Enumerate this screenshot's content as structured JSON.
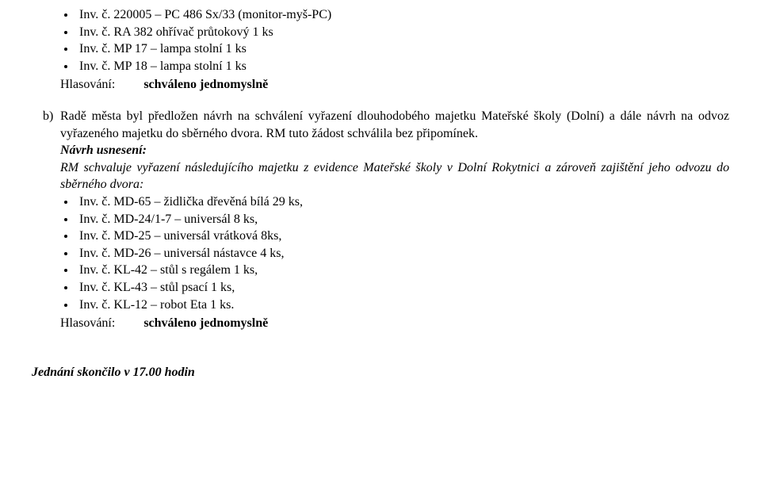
{
  "list1": [
    "Inv. č. 220005 – PC 486 Sx/33 (monitor-myš-PC)",
    "Inv. č. RA 382 ohřívač průtokový 1 ks",
    "Inv. č. MP 17 – lampa stolní 1 ks",
    "Inv. č. MP 18 – lampa stolní 1 ks"
  ],
  "voting": {
    "label": "Hlasování:",
    "result": "schváleno jednomyslně"
  },
  "blockB": {
    "marker": "b)",
    "para": "Radě města byl předložen návrh na schválení vyřazení dlouhodobého majetku Mateřské školy (Dolní) a dále návrh na odvoz vyřazeného majetku do sběrného dvora. RM tuto žádost schválila bez připomínek.",
    "navrhLabel": "Návrh usnesení:",
    "navrhText": "RM schvaluje vyřazení následujícího majetku z evidence Mateřské školy v Dolní Rokytnici a zároveň zajištění jeho odvozu do sběrného dvora:"
  },
  "list2": [
    "Inv. č. MD-65 – židlička dřevěná bílá 29 ks,",
    "Inv. č. MD-24/1-7 – universál 8 ks,",
    "Inv. č. MD-25 – universál vrátková 8ks,",
    "Inv. č. MD-26 – universál nástavce 4 ks,",
    "Inv. č. KL-42 – stůl s regálem 1 ks,",
    "Inv. č. KL-43 – stůl psací 1 ks,",
    "Inv. č. KL-12 – robot Eta 1 ks."
  ],
  "ending": "Jednání skončilo v 17.00 hodin"
}
